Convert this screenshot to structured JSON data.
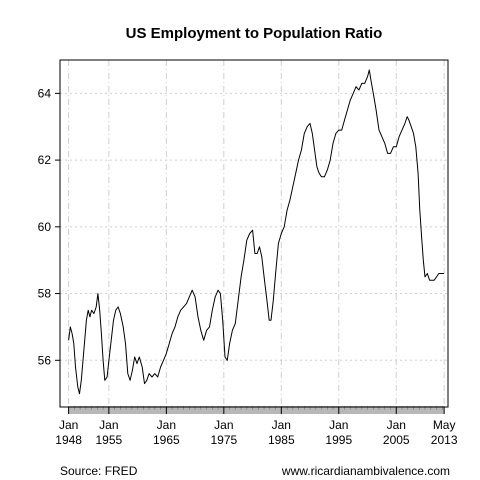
{
  "chart_data": {
    "type": "line",
    "title": "US Employment to Population Ratio",
    "xlabel": "",
    "ylabel": "",
    "xlim": [
      1946.5,
      2014.0
    ],
    "ylim": [
      54.6,
      65.0
    ],
    "grid": true,
    "legend": "none",
    "line_color": "#000000",
    "axis_band_color": "#b8b8b8",
    "x_ticks": [
      {
        "x": 1948.0,
        "line1": "Jan",
        "line2": "1948"
      },
      {
        "x": 1955.0,
        "line1": "Jan",
        "line2": "1955"
      },
      {
        "x": 1965.0,
        "line1": "Jan",
        "line2": "1965"
      },
      {
        "x": 1975.0,
        "line1": "Jan",
        "line2": "1975"
      },
      {
        "x": 1985.0,
        "line1": "Jan",
        "line2": "1985"
      },
      {
        "x": 1995.0,
        "line1": "Jan",
        "line2": "1995"
      },
      {
        "x": 2005.0,
        "line1": "Jan",
        "line2": "2005"
      },
      {
        "x": 2013.33,
        "line1": "May",
        "line2": "2013"
      }
    ],
    "y_ticks": [
      56,
      58,
      60,
      62,
      64
    ],
    "series": [
      {
        "name": "",
        "points": [
          [
            1948.0,
            56.6
          ],
          [
            1948.3,
            57.0
          ],
          [
            1948.6,
            56.8
          ],
          [
            1948.9,
            56.5
          ],
          [
            1949.2,
            55.8
          ],
          [
            1949.6,
            55.2
          ],
          [
            1949.9,
            55.0
          ],
          [
            1950.2,
            55.4
          ],
          [
            1950.5,
            56.0
          ],
          [
            1950.8,
            56.6
          ],
          [
            1951.1,
            57.2
          ],
          [
            1951.4,
            57.5
          ],
          [
            1951.7,
            57.3
          ],
          [
            1952.0,
            57.5
          ],
          [
            1952.4,
            57.4
          ],
          [
            1952.8,
            57.6
          ],
          [
            1953.1,
            58.0
          ],
          [
            1953.4,
            57.5
          ],
          [
            1953.7,
            56.8
          ],
          [
            1954.0,
            56.0
          ],
          [
            1954.3,
            55.4
          ],
          [
            1954.7,
            55.5
          ],
          [
            1955.0,
            56.0
          ],
          [
            1955.4,
            56.6
          ],
          [
            1955.8,
            57.2
          ],
          [
            1956.2,
            57.5
          ],
          [
            1956.6,
            57.6
          ],
          [
            1957.0,
            57.4
          ],
          [
            1957.5,
            57.0
          ],
          [
            1957.9,
            56.5
          ],
          [
            1958.3,
            55.6
          ],
          [
            1958.7,
            55.4
          ],
          [
            1959.1,
            55.7
          ],
          [
            1959.5,
            56.1
          ],
          [
            1959.9,
            55.9
          ],
          [
            1960.3,
            56.1
          ],
          [
            1960.8,
            55.8
          ],
          [
            1961.2,
            55.3
          ],
          [
            1961.6,
            55.4
          ],
          [
            1962.0,
            55.6
          ],
          [
            1962.5,
            55.5
          ],
          [
            1963.0,
            55.6
          ],
          [
            1963.5,
            55.5
          ],
          [
            1964.0,
            55.8
          ],
          [
            1964.5,
            56.0
          ],
          [
            1965.0,
            56.2
          ],
          [
            1965.5,
            56.5
          ],
          [
            1966.0,
            56.8
          ],
          [
            1966.5,
            57.0
          ],
          [
            1967.0,
            57.3
          ],
          [
            1967.5,
            57.5
          ],
          [
            1968.0,
            57.6
          ],
          [
            1968.5,
            57.7
          ],
          [
            1969.0,
            57.9
          ],
          [
            1969.5,
            58.1
          ],
          [
            1970.0,
            57.9
          ],
          [
            1970.5,
            57.3
          ],
          [
            1971.0,
            56.9
          ],
          [
            1971.5,
            56.6
          ],
          [
            1972.0,
            56.9
          ],
          [
            1972.5,
            57.0
          ],
          [
            1973.0,
            57.5
          ],
          [
            1973.5,
            57.9
          ],
          [
            1974.0,
            58.1
          ],
          [
            1974.4,
            58.0
          ],
          [
            1974.8,
            57.2
          ],
          [
            1975.2,
            56.1
          ],
          [
            1975.6,
            56.0
          ],
          [
            1976.0,
            56.5
          ],
          [
            1976.5,
            56.9
          ],
          [
            1977.0,
            57.1
          ],
          [
            1977.5,
            57.8
          ],
          [
            1978.0,
            58.5
          ],
          [
            1978.5,
            59.0
          ],
          [
            1979.0,
            59.6
          ],
          [
            1979.5,
            59.8
          ],
          [
            1980.0,
            59.9
          ],
          [
            1980.4,
            59.2
          ],
          [
            1980.8,
            59.2
          ],
          [
            1981.2,
            59.4
          ],
          [
            1981.6,
            59.1
          ],
          [
            1982.0,
            58.5
          ],
          [
            1982.5,
            57.8
          ],
          [
            1982.9,
            57.2
          ],
          [
            1983.2,
            57.2
          ],
          [
            1983.6,
            57.8
          ],
          [
            1984.0,
            58.6
          ],
          [
            1984.5,
            59.5
          ],
          [
            1985.0,
            59.8
          ],
          [
            1985.5,
            60.0
          ],
          [
            1986.0,
            60.5
          ],
          [
            1986.5,
            60.8
          ],
          [
            1987.0,
            61.2
          ],
          [
            1987.5,
            61.6
          ],
          [
            1988.0,
            62.0
          ],
          [
            1988.5,
            62.3
          ],
          [
            1989.0,
            62.8
          ],
          [
            1989.5,
            63.0
          ],
          [
            1990.0,
            63.1
          ],
          [
            1990.4,
            62.8
          ],
          [
            1990.8,
            62.3
          ],
          [
            1991.2,
            61.8
          ],
          [
            1991.6,
            61.6
          ],
          [
            1992.0,
            61.5
          ],
          [
            1992.5,
            61.5
          ],
          [
            1993.0,
            61.7
          ],
          [
            1993.5,
            62.0
          ],
          [
            1994.0,
            62.5
          ],
          [
            1994.5,
            62.8
          ],
          [
            1995.0,
            62.9
          ],
          [
            1995.5,
            62.9
          ],
          [
            1996.0,
            63.2
          ],
          [
            1996.5,
            63.5
          ],
          [
            1997.0,
            63.8
          ],
          [
            1997.5,
            64.0
          ],
          [
            1998.0,
            64.2
          ],
          [
            1998.5,
            64.1
          ],
          [
            1999.0,
            64.3
          ],
          [
            1999.5,
            64.3
          ],
          [
            2000.0,
            64.5
          ],
          [
            2000.3,
            64.7
          ],
          [
            2000.7,
            64.3
          ],
          [
            2001.0,
            64.0
          ],
          [
            2001.5,
            63.5
          ],
          [
            2002.0,
            62.9
          ],
          [
            2002.5,
            62.7
          ],
          [
            2003.0,
            62.5
          ],
          [
            2003.5,
            62.2
          ],
          [
            2004.0,
            62.2
          ],
          [
            2004.5,
            62.4
          ],
          [
            2005.0,
            62.4
          ],
          [
            2005.5,
            62.7
          ],
          [
            2006.0,
            62.9
          ],
          [
            2006.5,
            63.1
          ],
          [
            2006.9,
            63.3
          ],
          [
            2007.2,
            63.2
          ],
          [
            2007.6,
            63.0
          ],
          [
            2008.0,
            62.8
          ],
          [
            2008.4,
            62.4
          ],
          [
            2008.8,
            61.6
          ],
          [
            2009.1,
            60.5
          ],
          [
            2009.4,
            59.7
          ],
          [
            2009.7,
            59.0
          ],
          [
            2010.0,
            58.5
          ],
          [
            2010.4,
            58.6
          ],
          [
            2010.8,
            58.4
          ],
          [
            2011.2,
            58.4
          ],
          [
            2011.6,
            58.4
          ],
          [
            2012.0,
            58.5
          ],
          [
            2012.4,
            58.6
          ],
          [
            2012.8,
            58.6
          ],
          [
            2013.1,
            58.6
          ],
          [
            2013.33,
            58.6
          ]
        ]
      }
    ]
  },
  "footer": {
    "source": "Source: FRED",
    "website": "www.ricardianambivalence.com"
  }
}
